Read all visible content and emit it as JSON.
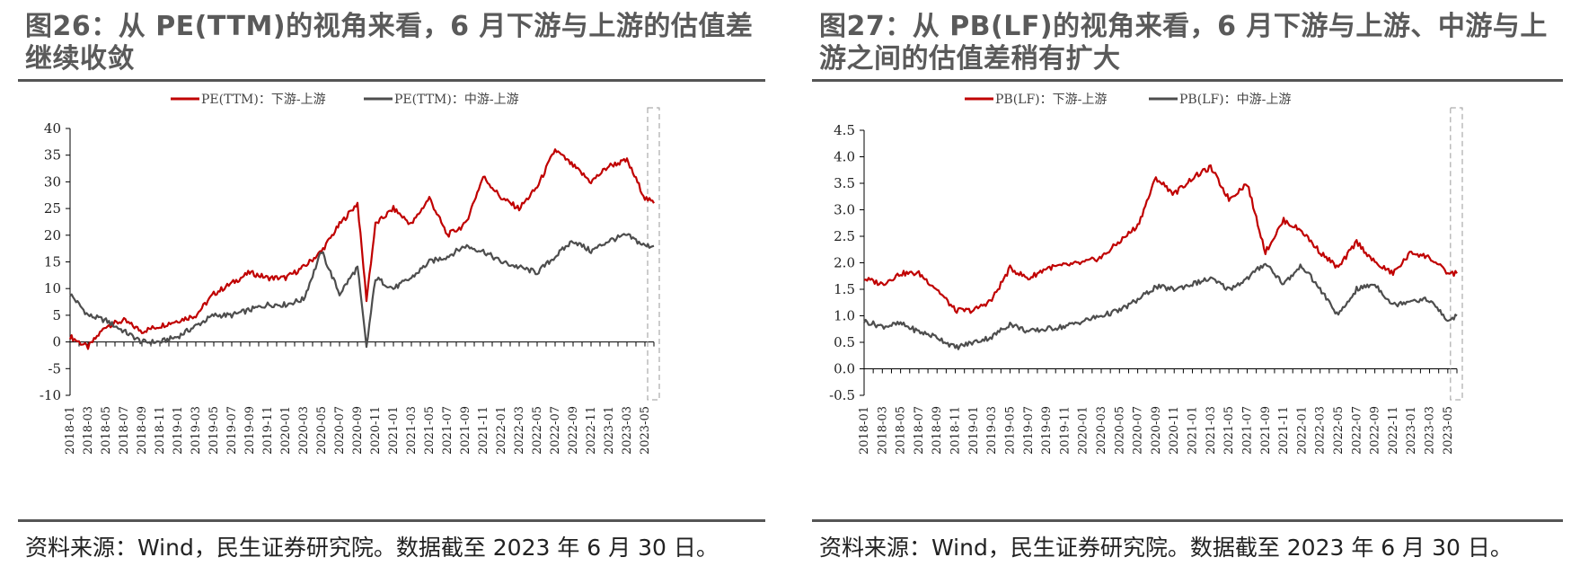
{
  "charts": [
    {
      "title": "图26：从 PE(TTM)的视角来看，6 月下游与上游的估值差继续收敛",
      "source": "资料来源：Wind，民生证券研究院。数据截至 2023 年 6 月 30 日。"
    },
    {
      "title": "图27：从 PB(LF)的视角来看，6 月下游与上游、中游与上游之间的估值差稍有扩大",
      "source": "资料来源：Wind，民生证券研究院。数据截至 2023 年 6 月 30 日。"
    }
  ],
  "chart_data": [
    {
      "type": "line",
      "x_ticks": [
        "2018-01",
        "2018-03",
        "2018-05",
        "2018-07",
        "2018-09",
        "2018-11",
        "2019-01",
        "2019-03",
        "2019-05",
        "2019-07",
        "2019-09",
        "2019-11",
        "2020-01",
        "2020-03",
        "2020-05",
        "2020-07",
        "2020-09",
        "2020-11",
        "2021-01",
        "2021-03",
        "2021-05",
        "2021-07",
        "2021-09",
        "2021-11",
        "2022-01",
        "2022-03",
        "2022-05",
        "2022-07",
        "2022-09",
        "2022-11",
        "2023-01",
        "2023-03",
        "2023-05"
      ],
      "ylim": [
        -10,
        40
      ],
      "y_ticks": [
        "40",
        "35",
        "30",
        "25",
        "20",
        "15",
        "10",
        "5",
        "0",
        "-5",
        "-10"
      ],
      "highlight": "2023-05 to 2023-06 (dashed box)",
      "series": [
        {
          "name": "PE(TTM)：下游-上游",
          "color": "#c00000",
          "x": [
            "2018-01",
            "2018-03",
            "2018-05",
            "2018-07",
            "2018-09",
            "2018-11",
            "2019-01",
            "2019-03",
            "2019-05",
            "2019-07",
            "2019-09",
            "2019-11",
            "2020-01",
            "2020-03",
            "2020-05",
            "2020-07",
            "2020-09",
            "2020-10",
            "2020-11",
            "2021-01",
            "2021-03",
            "2021-05",
            "2021-07",
            "2021-09",
            "2021-11",
            "2022-01",
            "2022-03",
            "2022-05",
            "2022-07",
            "2022-09",
            "2022-11",
            "2023-01",
            "2023-03",
            "2023-05",
            "2023-06"
          ],
          "values": [
            1,
            -1,
            3,
            4,
            2,
            3,
            4,
            5,
            9,
            11,
            13,
            12,
            12,
            14,
            17,
            22,
            26,
            8,
            22,
            25,
            22,
            27,
            20,
            22,
            31,
            27,
            25,
            29,
            36,
            33,
            30,
            33,
            34,
            27,
            26
          ]
        },
        {
          "name": "PE(TTM)：中游-上游",
          "color": "#4d4d4d",
          "x": [
            "2018-01",
            "2018-03",
            "2018-05",
            "2018-07",
            "2018-09",
            "2018-11",
            "2019-01",
            "2019-03",
            "2019-05",
            "2019-07",
            "2019-09",
            "2019-11",
            "2020-01",
            "2020-03",
            "2020-05",
            "2020-07",
            "2020-09",
            "2020-10",
            "2020-11",
            "2021-01",
            "2021-03",
            "2021-05",
            "2021-07",
            "2021-09",
            "2021-11",
            "2022-01",
            "2022-03",
            "2022-05",
            "2022-07",
            "2022-09",
            "2022-11",
            "2023-01",
            "2023-03",
            "2023-05",
            "2023-06"
          ],
          "values": [
            9,
            5,
            4,
            2,
            0,
            0,
            1,
            3,
            5,
            5,
            6,
            7,
            7,
            8,
            17,
            9,
            14,
            -1,
            12,
            10,
            12,
            15,
            16,
            18,
            17,
            15,
            14,
            13,
            16,
            19,
            17,
            19,
            20,
            18,
            18
          ]
        }
      ]
    },
    {
      "type": "line",
      "x_ticks": [
        "2018-01",
        "2018-03",
        "2018-05",
        "2018-07",
        "2018-09",
        "2018-11",
        "2019-01",
        "2019-03",
        "2019-05",
        "2019-07",
        "2019-09",
        "2019-11",
        "2020-01",
        "2020-03",
        "2020-05",
        "2020-07",
        "2020-09",
        "2020-11",
        "2021-01",
        "2021-03",
        "2021-05",
        "2021-07",
        "2021-09",
        "2021-11",
        "2022-01",
        "2022-03",
        "2022-05",
        "2022-07",
        "2022-09",
        "2022-11",
        "2023-01",
        "2023-03",
        "2023-05"
      ],
      "ylim": [
        -0.5,
        4.5
      ],
      "y_ticks": [
        "4.5",
        "4.0",
        "3.5",
        "3.0",
        "2.5",
        "2.0",
        "1.5",
        "1.0",
        "0.5",
        "0.0",
        "-0.5"
      ],
      "highlight": "2023-05 to 2023-06 (dashed box)",
      "series": [
        {
          "name": "PB(LF)：下游-上游",
          "color": "#c00000",
          "x": [
            "2018-01",
            "2018-03",
            "2018-05",
            "2018-07",
            "2018-09",
            "2018-11",
            "2019-01",
            "2019-03",
            "2019-05",
            "2019-07",
            "2019-09",
            "2019-11",
            "2020-01",
            "2020-03",
            "2020-05",
            "2020-07",
            "2020-09",
            "2020-11",
            "2021-01",
            "2021-03",
            "2021-05",
            "2021-07",
            "2021-09",
            "2021-11",
            "2022-01",
            "2022-03",
            "2022-05",
            "2022-07",
            "2022-09",
            "2022-11",
            "2023-01",
            "2023-03",
            "2023-05",
            "2023-06"
          ],
          "values": [
            1.7,
            1.6,
            1.8,
            1.8,
            1.5,
            1.1,
            1.1,
            1.3,
            1.9,
            1.7,
            1.9,
            1.95,
            2.0,
            2.1,
            2.4,
            2.7,
            3.6,
            3.3,
            3.6,
            3.8,
            3.2,
            3.5,
            2.2,
            2.8,
            2.6,
            2.2,
            1.9,
            2.4,
            2.0,
            1.8,
            2.2,
            2.1,
            1.8,
            1.8
          ]
        },
        {
          "name": "PB(LF)：中游-上游",
          "color": "#4d4d4d",
          "x": [
            "2018-01",
            "2018-03",
            "2018-05",
            "2018-07",
            "2018-09",
            "2018-11",
            "2019-01",
            "2019-03",
            "2019-05",
            "2019-07",
            "2019-09",
            "2019-11",
            "2020-01",
            "2020-03",
            "2020-05",
            "2020-07",
            "2020-09",
            "2020-11",
            "2021-01",
            "2021-03",
            "2021-05",
            "2021-07",
            "2021-09",
            "2021-11",
            "2022-01",
            "2022-03",
            "2022-05",
            "2022-07",
            "2022-09",
            "2022-11",
            "2023-01",
            "2023-03",
            "2023-05",
            "2023-06"
          ],
          "values": [
            0.9,
            0.8,
            0.85,
            0.7,
            0.6,
            0.4,
            0.5,
            0.6,
            0.85,
            0.7,
            0.75,
            0.8,
            0.9,
            1.0,
            1.1,
            1.3,
            1.55,
            1.5,
            1.6,
            1.7,
            1.5,
            1.7,
            2.0,
            1.6,
            1.95,
            1.5,
            1.0,
            1.5,
            1.6,
            1.2,
            1.3,
            1.3,
            0.9,
            1.0
          ]
        }
      ]
    }
  ]
}
